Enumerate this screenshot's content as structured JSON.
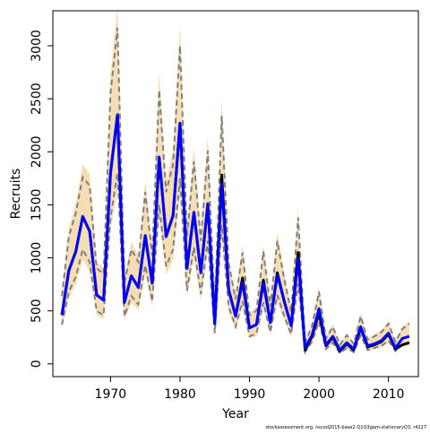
{
  "chart_data": {
    "type": "line",
    "title": "",
    "xlabel": "Year",
    "ylabel": "Recruits",
    "xlim": [
      1961.7,
      2014.3
    ],
    "ylim": [
      -120,
      3330
    ],
    "x_ticks": [
      1970,
      1980,
      1990,
      2000,
      2010
    ],
    "x_tick_labels": [
      "1970",
      "1980",
      "1990",
      "2000",
      "2010"
    ],
    "y_ticks": [
      0,
      500,
      1000,
      1500,
      2000,
      2500,
      3000
    ],
    "y_tick_labels": [
      "0",
      "500",
      "1000",
      "1500",
      "2000",
      "2500",
      "3000"
    ],
    "grid": false,
    "legend": "none",
    "colors": {
      "band": "#f5deb3",
      "interval_lines": "#808080",
      "mle_line": "#000000",
      "estimate_line": "#0000ff"
    },
    "x": [
      1963,
      1964,
      1965,
      1966,
      1967,
      1968,
      1969,
      1970,
      1971,
      1972,
      1973,
      1974,
      1975,
      1976,
      1977,
      1978,
      1979,
      1980,
      1981,
      1982,
      1983,
      1984,
      1985,
      1986,
      1987,
      1988,
      1989,
      1990,
      1991,
      1992,
      1993,
      1994,
      1995,
      1996,
      1997,
      1998,
      1999,
      2000,
      2001,
      2002,
      2003,
      2004,
      2005,
      2006,
      2007,
      2008,
      2009,
      2010,
      2011,
      2012,
      2013
    ],
    "series": [
      {
        "role": "estimate",
        "color": "#0000ff",
        "values": [
          460,
          880,
          1060,
          1390,
          1250,
          650,
          600,
          1800,
          2350,
          580,
          830,
          720,
          1210,
          760,
          1950,
          1200,
          1400,
          2270,
          900,
          1430,
          860,
          1510,
          380,
          1700,
          700,
          450,
          770,
          340,
          370,
          760,
          390,
          840,
          590,
          360,
          990,
          150,
          270,
          520,
          180,
          260,
          130,
          200,
          140,
          350,
          170,
          190,
          220,
          290,
          150,
          240,
          260
        ]
      },
      {
        "role": "mle",
        "color": "#000000",
        "values": [
          460,
          880,
          1060,
          1390,
          1250,
          650,
          600,
          1800,
          2350,
          580,
          830,
          720,
          1210,
          760,
          1950,
          1200,
          1400,
          2270,
          900,
          1430,
          860,
          1510,
          380,
          1780,
          700,
          450,
          810,
          340,
          370,
          790,
          390,
          860,
          590,
          360,
          1050,
          130,
          260,
          480,
          170,
          250,
          120,
          190,
          130,
          340,
          160,
          180,
          210,
          280,
          140,
          180,
          200
        ]
      },
      {
        "role": "upper_bound",
        "color": "#808080",
        "values": [
          640,
          1200,
          1420,
          1760,
          1680,
          900,
          850,
          2550,
          3170,
          760,
          1080,
          960,
          1620,
          1020,
          2580,
          1620,
          1880,
          3000,
          1200,
          1910,
          1160,
          2010,
          520,
          2340,
          950,
          610,
          1050,
          460,
          500,
          1060,
          540,
          1160,
          800,
          490,
          1380,
          200,
          360,
          680,
          240,
          350,
          180,
          270,
          190,
          450,
          230,
          260,
          300,
          380,
          210,
          330,
          380
        ]
      },
      {
        "role": "lower_bound",
        "color": "#808080",
        "values": [
          370,
          680,
          820,
          1080,
          960,
          500,
          460,
          1380,
          1800,
          450,
          640,
          560,
          930,
          590,
          1500,
          920,
          1080,
          1750,
          690,
          1100,
          660,
          1160,
          290,
          1310,
          540,
          350,
          590,
          260,
          285,
          580,
          300,
          650,
          450,
          280,
          760,
          110,
          210,
          400,
          140,
          200,
          100,
          150,
          110,
          270,
          130,
          150,
          170,
          220,
          120,
          180,
          200
        ]
      },
      {
        "role": "band_upper",
        "color": "#f5deb3",
        "values": [
          690,
          1280,
          1520,
          1880,
          1790,
          960,
          910,
          2720,
          3380,
          810,
          1150,
          1020,
          1730,
          1090,
          2760,
          1730,
          2010,
          3200,
          1280,
          2040,
          1240,
          2150,
          560,
          2500,
          1010,
          650,
          1120,
          490,
          530,
          1130,
          580,
          1240,
          850,
          520,
          1470,
          210,
          380,
          720,
          260,
          370,
          190,
          290,
          200,
          480,
          240,
          280,
          320,
          400,
          220,
          350,
          400
        ]
      },
      {
        "role": "band_lower",
        "color": "#f5deb3",
        "values": [
          330,
          620,
          750,
          980,
          870,
          460,
          420,
          1260,
          1640,
          410,
          580,
          510,
          850,
          540,
          1370,
          840,
          980,
          1590,
          630,
          1000,
          600,
          1060,
          260,
          1190,
          490,
          320,
          540,
          240,
          260,
          530,
          270,
          590,
          410,
          250,
          690,
          100,
          190,
          360,
          130,
          180,
          90,
          140,
          100,
          250,
          120,
          140,
          155,
          200,
          110,
          165,
          180
        ]
      }
    ],
    "annotations": [
      "stockassessment.org, nscod2015-base2-Q1Q3gam-stationaryQ3, r4227"
    ]
  }
}
